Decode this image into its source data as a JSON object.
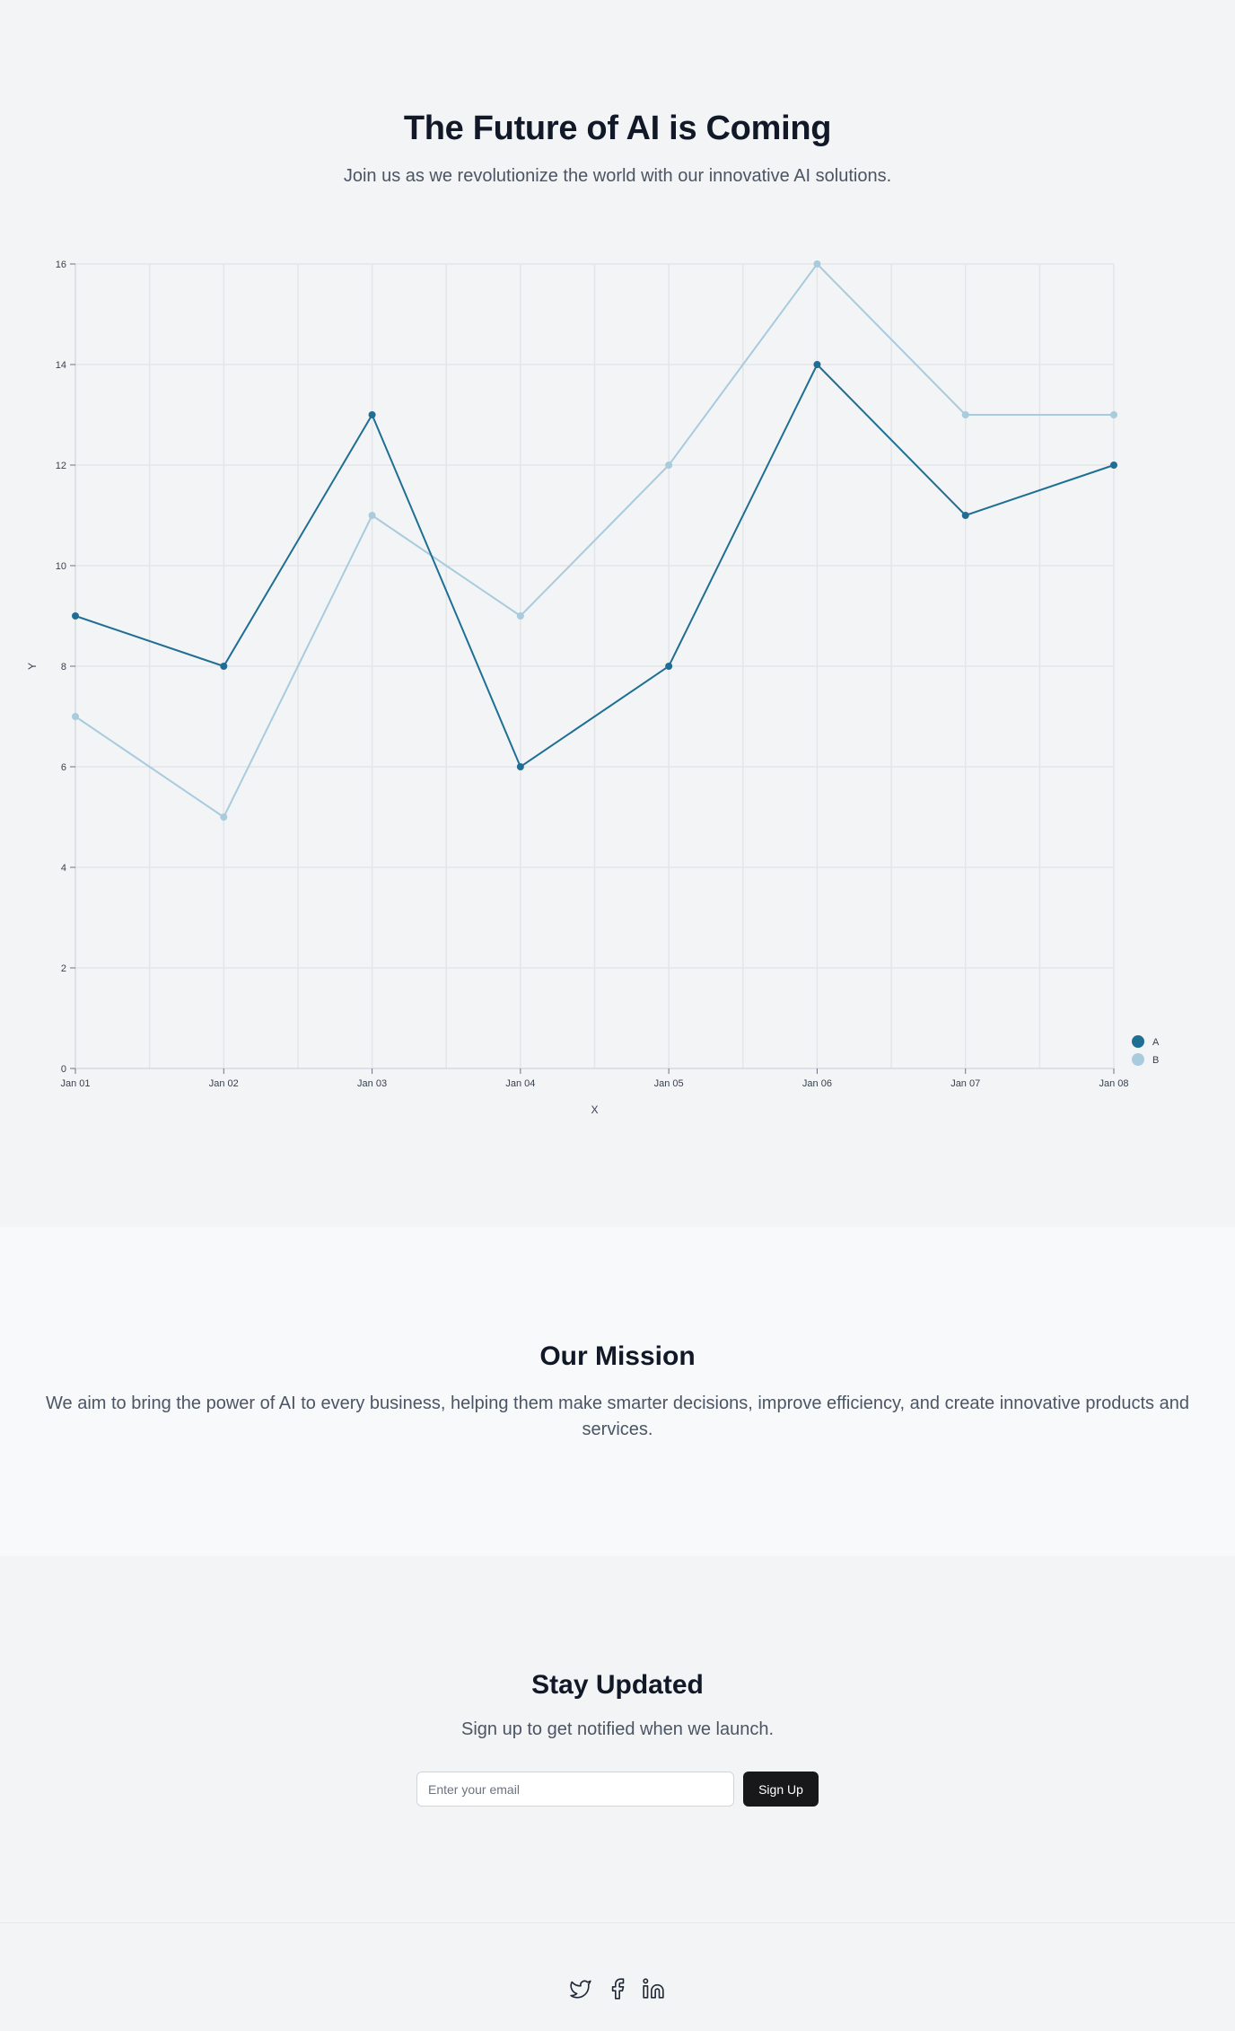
{
  "hero": {
    "title": "The Future of AI is Coming",
    "subtitle": "Join us as we revolutionize the world with our innovative AI solutions."
  },
  "chart_data": {
    "type": "line",
    "categories": [
      "Jan 01",
      "Jan 02",
      "Jan 03",
      "Jan 04",
      "Jan 05",
      "Jan 06",
      "Jan 07",
      "Jan 08"
    ],
    "series": [
      {
        "name": "A",
        "values": [
          9,
          8,
          13,
          6,
          8,
          14,
          11,
          12
        ],
        "color": "#1f6f94"
      },
      {
        "name": "B",
        "values": [
          7,
          5,
          11,
          9,
          12,
          16,
          13,
          13
        ],
        "color": "#a8cbde"
      }
    ],
    "title": "",
    "xlabel": "X",
    "ylabel": "Y",
    "ylim": [
      0,
      16
    ],
    "yticks": [
      0,
      2,
      4,
      6,
      8,
      10,
      12,
      14,
      16
    ],
    "grid": true,
    "legend_position": "bottom-right"
  },
  "mission": {
    "title": "Our Mission",
    "text": "We aim to bring the power of AI to every business, helping them make smarter decisions, improve efficiency, and create innovative products and services."
  },
  "signup": {
    "title": "Stay Updated",
    "subtitle": "Sign up to get notified when we launch.",
    "email_placeholder": "Enter your email",
    "email_value": "",
    "button_label": "Sign Up"
  },
  "footer": {
    "social_icons": [
      "twitter-icon",
      "facebook-icon",
      "linkedin-icon"
    ],
    "icon_color": "#1f2937"
  },
  "colors": {
    "page_bg": "#f3f4f6",
    "mission_bg": "#f8f9fb",
    "button_bg": "#18181b",
    "heading": "#111827",
    "body_text": "#4b5563"
  }
}
